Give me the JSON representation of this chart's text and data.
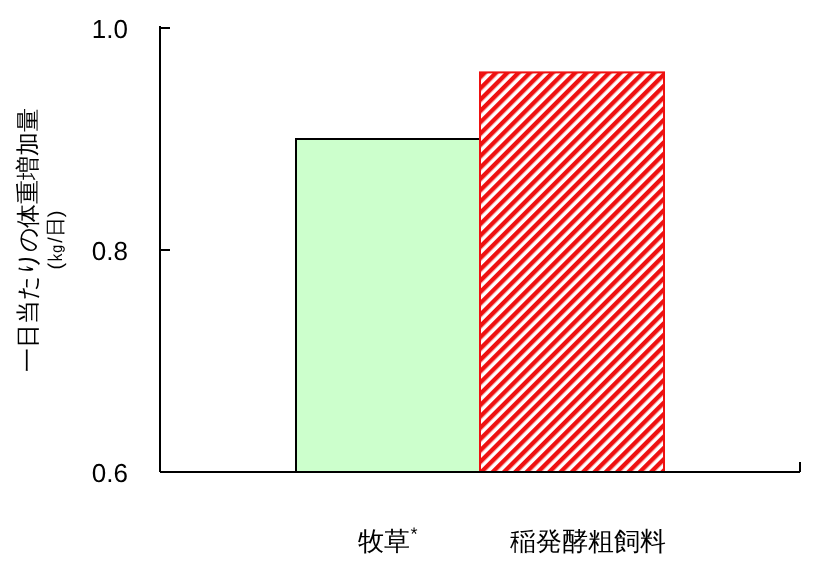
{
  "chart_data": {
    "type": "bar",
    "categories": [
      "牧草$^{*}$",
      "稲発酵粗飼料"
    ],
    "values": [
      0.9,
      0.96
    ],
    "colors": [
      "#ccffcc",
      "#ee1111"
    ],
    "ylabel": "一日当たりの体重増加量\n(㎏/日)",
    "ylim": [
      0.6,
      1.0
    ],
    "yticks": [
      {
        "value": 0.6,
        "label": "0.6"
      },
      {
        "value": 0.8,
        "label": "0.8"
      },
      {
        "value": 1.0,
        "label": "1.0"
      }
    ],
    "grid": false
  }
}
